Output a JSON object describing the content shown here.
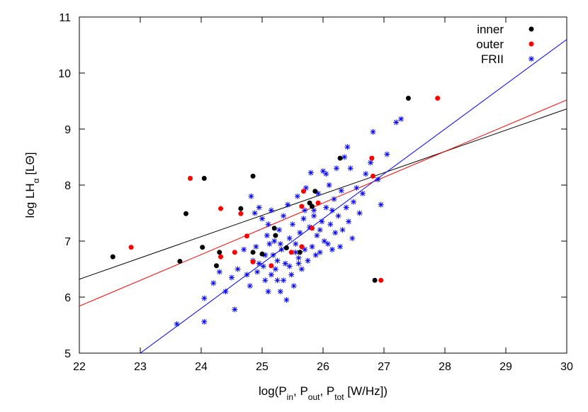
{
  "chart_data": {
    "type": "scatter",
    "title": "",
    "xlabel": {
      "prefix": "log(P",
      "in_sub": "in",
      "sep1": ", P",
      "out_sub": "out",
      "sep2": ", P",
      "tot_sub": "tot",
      "suffix": " [W/Hz])"
    },
    "ylabel": {
      "prefix": "log LH",
      "sub": "α",
      "suffix": " [LΘ]"
    },
    "xlim": [
      22,
      30
    ],
    "ylim": [
      5,
      11
    ],
    "xticks": [
      "22",
      "23",
      "24",
      "25",
      "26",
      "27",
      "28",
      "29",
      "30"
    ],
    "yticks": [
      "5",
      "6",
      "7",
      "8",
      "9",
      "10",
      "11"
    ],
    "grid": false,
    "legend_position": "top-right",
    "series": [
      {
        "name": "inner",
        "color": "#000000",
        "marker": "circle",
        "points": [
          [
            22.55,
            6.72
          ],
          [
            23.65,
            6.64
          ],
          [
            23.75,
            7.49
          ],
          [
            24.05,
            8.12
          ],
          [
            24.02,
            6.89
          ],
          [
            24.25,
            6.56
          ],
          [
            24.3,
            6.8
          ],
          [
            24.65,
            7.58
          ],
          [
            24.85,
            8.16
          ],
          [
            24.85,
            6.8
          ],
          [
            25.0,
            6.77
          ],
          [
            25.2,
            7.23
          ],
          [
            25.22,
            7.1
          ],
          [
            25.4,
            6.88
          ],
          [
            25.62,
            6.8
          ],
          [
            25.78,
            7.68
          ],
          [
            25.82,
            7.62
          ],
          [
            25.87,
            7.89
          ],
          [
            26.28,
            8.48
          ],
          [
            26.85,
            6.3
          ],
          [
            27.4,
            9.55
          ]
        ]
      },
      {
        "name": "outer",
        "color": "#ff0000",
        "marker": "circle",
        "points": [
          [
            22.85,
            6.89
          ],
          [
            23.82,
            8.12
          ],
          [
            24.32,
            7.58
          ],
          [
            24.32,
            6.72
          ],
          [
            24.55,
            6.8
          ],
          [
            24.65,
            7.49
          ],
          [
            24.75,
            7.09
          ],
          [
            24.85,
            6.63
          ],
          [
            25.15,
            6.56
          ],
          [
            25.48,
            6.8
          ],
          [
            25.65,
            7.62
          ],
          [
            25.65,
            6.9
          ],
          [
            25.68,
            7.89
          ],
          [
            25.82,
            7.23
          ],
          [
            25.92,
            7.68
          ],
          [
            26.8,
            8.48
          ],
          [
            26.82,
            8.16
          ],
          [
            26.95,
            6.3
          ],
          [
            27.88,
            9.55
          ]
        ]
      },
      {
        "name": "FRII",
        "color": "#0000ff",
        "marker": "star",
        "points": [
          [
            23.6,
            5.52
          ],
          [
            24.05,
            5.56
          ],
          [
            24.05,
            5.98
          ],
          [
            24.2,
            6.25
          ],
          [
            24.3,
            6.45
          ],
          [
            24.4,
            6.1
          ],
          [
            24.5,
            6.35
          ],
          [
            24.55,
            5.78
          ],
          [
            24.6,
            6.5
          ],
          [
            24.7,
            6.85
          ],
          [
            24.75,
            6.4
          ],
          [
            24.8,
            6.2
          ],
          [
            24.82,
            7.8
          ],
          [
            24.85,
            6.65
          ],
          [
            24.88,
            7.5
          ],
          [
            24.9,
            6.9
          ],
          [
            24.92,
            6.45
          ],
          [
            24.95,
            7.6
          ],
          [
            25.0,
            7.4
          ],
          [
            25.02,
            6.55
          ],
          [
            25.05,
            6.3
          ],
          [
            25.08,
            7.1
          ],
          [
            25.1,
            7.3
          ],
          [
            25.12,
            6.95
          ],
          [
            25.15,
            7.55
          ],
          [
            25.18,
            6.75
          ],
          [
            25.2,
            7.0
          ],
          [
            25.22,
            6.5
          ],
          [
            25.25,
            6.3
          ],
          [
            25.28,
            7.2
          ],
          [
            25.3,
            6.1
          ],
          [
            25.32,
            6.85
          ],
          [
            25.35,
            7.45
          ],
          [
            25.38,
            6.6
          ],
          [
            25.4,
            5.95
          ],
          [
            25.42,
            7.65
          ],
          [
            25.45,
            7.05
          ],
          [
            25.48,
            6.4
          ],
          [
            25.5,
            7.3
          ],
          [
            25.52,
            6.2
          ],
          [
            25.55,
            6.95
          ],
          [
            25.58,
            7.8
          ],
          [
            25.6,
            6.7
          ],
          [
            25.62,
            7.15
          ],
          [
            25.65,
            6.5
          ],
          [
            25.68,
            7.4
          ],
          [
            25.7,
            6.85
          ],
          [
            25.72,
            7.95
          ],
          [
            25.75,
            6.65
          ],
          [
            25.78,
            7.25
          ],
          [
            25.8,
            8.22
          ],
          [
            25.82,
            6.9
          ],
          [
            25.85,
            7.55
          ],
          [
            25.88,
            6.75
          ],
          [
            25.9,
            7.1
          ],
          [
            25.92,
            7.85
          ],
          [
            25.95,
            6.8
          ],
          [
            25.98,
            7.35
          ],
          [
            26.0,
            8.25
          ],
          [
            26.02,
            7.0
          ],
          [
            26.05,
            7.6
          ],
          [
            26.08,
            6.95
          ],
          [
            26.1,
            8.0
          ],
          [
            26.12,
            7.3
          ],
          [
            26.15,
            6.85
          ],
          [
            26.18,
            7.75
          ],
          [
            26.2,
            7.15
          ],
          [
            26.22,
            8.3
          ],
          [
            26.25,
            7.45
          ],
          [
            26.28,
            6.9
          ],
          [
            26.3,
            7.9
          ],
          [
            26.32,
            7.2
          ],
          [
            26.35,
            8.5
          ],
          [
            26.38,
            7.6
          ],
          [
            26.4,
            8.68
          ],
          [
            26.42,
            7.35
          ],
          [
            26.45,
            8.3
          ],
          [
            26.48,
            7.05
          ],
          [
            26.5,
            7.7
          ],
          [
            26.55,
            7.95
          ],
          [
            26.6,
            7.5
          ],
          [
            26.65,
            7.85
          ],
          [
            26.7,
            8.2
          ],
          [
            26.78,
            8.4
          ],
          [
            26.82,
            8.95
          ],
          [
            26.9,
            8.1
          ],
          [
            26.95,
            7.65
          ],
          [
            27.05,
            8.55
          ],
          [
            27.2,
            9.12
          ],
          [
            27.28,
            9.18
          ],
          [
            25.1,
            6.1
          ],
          [
            25.25,
            6.65
          ],
          [
            25.35,
            6.3
          ],
          [
            25.45,
            6.55
          ],
          [
            25.55,
            6.8
          ],
          [
            25.15,
            6.4
          ],
          [
            25.05,
            6.75
          ],
          [
            24.95,
            6.6
          ],
          [
            25.3,
            6.95
          ],
          [
            25.6,
            6.6
          ],
          [
            25.7,
            7.55
          ],
          [
            25.85,
            7.45
          ],
          [
            26.05,
            8.2
          ],
          [
            26.15,
            7.55
          ],
          [
            25.95,
            7.2
          ]
        ]
      }
    ],
    "fit_lines": [
      {
        "series": "inner",
        "color": "#000000",
        "x": [
          22,
          30
        ],
        "y": [
          6.32,
          9.36
        ]
      },
      {
        "series": "outer",
        "color": "#ff0000",
        "x": [
          22,
          30
        ],
        "y": [
          5.84,
          9.52
        ]
      },
      {
        "series": "FRII",
        "color": "#0000ff",
        "x": [
          23.0,
          30
        ],
        "y": [
          5.0,
          10.6
        ]
      }
    ]
  }
}
